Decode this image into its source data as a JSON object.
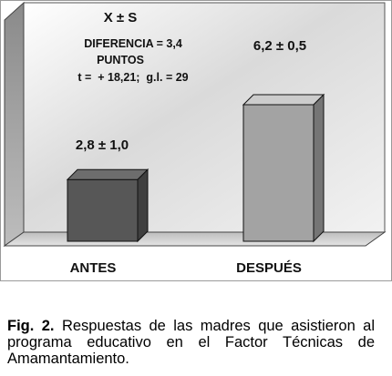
{
  "chart_data": {
    "type": "bar",
    "title": "X ± S",
    "categories": [
      "ANTES",
      "DESPUÉS"
    ],
    "values": [
      2.8,
      6.2
    ],
    "errors": [
      1.0,
      0.5
    ],
    "value_labels": [
      "2,8 ± 1,0",
      "6,2 ± 0,5"
    ],
    "annotation": {
      "line1": "DIFERENCIA = 3,4",
      "line2": "PUNTOS",
      "line3": "t =  + 18,21;  g.l. = 29"
    },
    "ylim": [
      0,
      8
    ],
    "grid": false,
    "three_d": true,
    "colors": {
      "bar_antes": "#575757",
      "bar_despues": "#a3a3a3",
      "panel": "#d6d6d6"
    }
  },
  "caption": {
    "label": "Fig. 2.",
    "text": "Respuestas de las madres que asistieron al programa educativo en el Factor Técnicas de Amamantamiento."
  }
}
